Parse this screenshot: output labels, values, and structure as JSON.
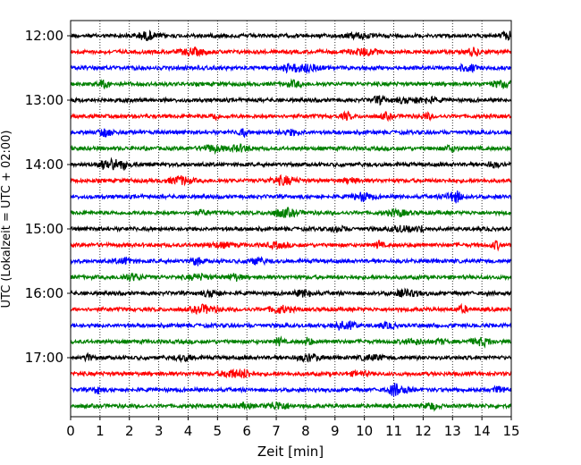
{
  "chart_data": {
    "type": "line",
    "title": "",
    "xlabel": "Zeit  [min]",
    "ylabel": "UTC (Lokalzeit = UTC + 02:00)",
    "xlim": [
      0,
      15
    ],
    "xticks": [
      "0",
      "1",
      "2",
      "3",
      "4",
      "5",
      "6",
      "7",
      "8",
      "9",
      "10",
      "11",
      "12",
      "13",
      "14",
      "15"
    ],
    "yticks": [
      "12:00",
      "13:00",
      "14:00",
      "15:00",
      "16:00",
      "17:00"
    ],
    "grid": "vertical dotted at each minute",
    "legend": "none",
    "colors": [
      "#000000",
      "#ff0000",
      "#0000ff",
      "#008000"
    ],
    "trace_start_times": [
      "12:00",
      "12:15",
      "12:30",
      "12:45",
      "13:00",
      "13:15",
      "13:30",
      "13:45",
      "14:00",
      "14:15",
      "14:30",
      "14:45",
      "15:00",
      "15:15",
      "15:30",
      "15:45",
      "16:00",
      "16:15",
      "16:30",
      "16:45",
      "17:00",
      "17:15",
      "17:30",
      "17:45"
    ],
    "trace_length_min": 15,
    "notable_events": [
      {
        "trace": "13:15",
        "x_min": 4.9
      },
      {
        "trace": "15:15",
        "x_min": 10.5
      },
      {
        "trace": "16:45",
        "x_min": 7.1
      },
      {
        "trace": "16:45",
        "x_min": 8.1
      },
      {
        "trace": "17:00",
        "x_min": 0.6
      },
      {
        "trace": "17:30",
        "x_min": 11.0
      }
    ]
  }
}
